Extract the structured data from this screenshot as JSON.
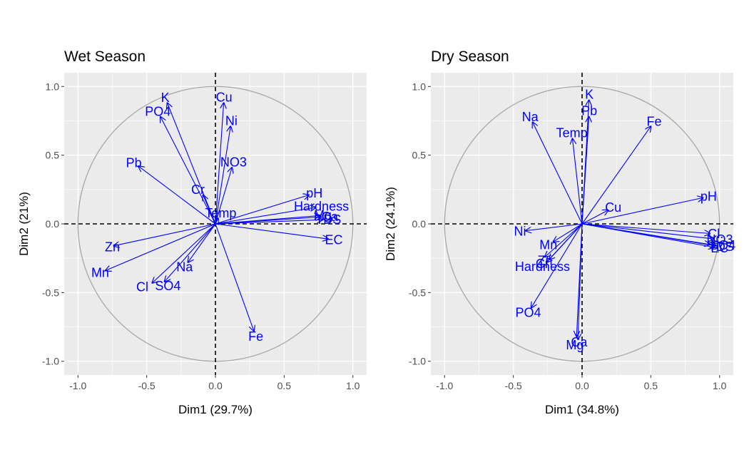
{
  "chart_data": [
    {
      "type": "scatter",
      "title": "Wet Season",
      "xlabel": "Dim1 (29.7%)",
      "ylabel": "Dim2 (21%)",
      "xlim": [
        -1.1,
        1.1
      ],
      "ylim": [
        -1.1,
        1.1
      ],
      "xticks": [
        "-1.0",
        "-0.5",
        "0.0",
        "0.5",
        "1.0"
      ],
      "yticks": [
        "-1.0",
        "-0.5",
        "0.0",
        "0.5",
        "1.0"
      ],
      "color": "#0000ff",
      "grid": true,
      "series": [
        {
          "name": "K",
          "x": -0.35,
          "y": 0.88
        },
        {
          "name": "PO4",
          "x": -0.4,
          "y": 0.78
        },
        {
          "name": "Cu",
          "x": 0.06,
          "y": 0.88
        },
        {
          "name": "Ni",
          "x": 0.11,
          "y": 0.71
        },
        {
          "name": "NO3",
          "x": 0.12,
          "y": 0.41
        },
        {
          "name": "Pb",
          "x": -0.56,
          "y": 0.42
        },
        {
          "name": "Cr",
          "x": -0.09,
          "y": 0.21
        },
        {
          "name": "Temp",
          "x": 0.02,
          "y": 0.04
        },
        {
          "name": "pH",
          "x": 0.68,
          "y": 0.21
        },
        {
          "name": "Hardness",
          "x": 0.73,
          "y": 0.12
        },
        {
          "name": "Mg",
          "x": 0.76,
          "y": 0.06
        },
        {
          "name": "Ca",
          "x": 0.77,
          "y": 0.05
        },
        {
          "name": "TDS",
          "x": 0.78,
          "y": 0.03
        },
        {
          "name": "EC",
          "x": 0.82,
          "y": -0.11
        },
        {
          "name": "Zn",
          "x": -0.74,
          "y": -0.16
        },
        {
          "name": "Mn",
          "x": -0.8,
          "y": -0.34
        },
        {
          "name": "Na",
          "x": -0.2,
          "y": -0.28
        },
        {
          "name": "Cl",
          "x": -0.46,
          "y": -0.43
        },
        {
          "name": "SO4",
          "x": -0.37,
          "y": -0.42
        },
        {
          "name": "Fe",
          "x": 0.28,
          "y": -0.78
        }
      ]
    },
    {
      "type": "scatter",
      "title": "Dry Season",
      "xlabel": "Dim1 (34.8%)",
      "ylabel": "Dim2 (24.1%)",
      "xlim": [
        -1.1,
        1.1
      ],
      "ylim": [
        -1.1,
        1.1
      ],
      "xticks": [
        "-1.0",
        "-0.5",
        "0.0",
        "0.5",
        "1.0"
      ],
      "yticks": [
        "-1.0",
        "-0.5",
        "0.0",
        "0.5",
        "1.0"
      ],
      "color": "#0000ff",
      "grid": true,
      "series": [
        {
          "name": "K",
          "x": 0.05,
          "y": 0.9
        },
        {
          "name": "Pb",
          "x": 0.05,
          "y": 0.78
        },
        {
          "name": "Na",
          "x": -0.36,
          "y": 0.74
        },
        {
          "name": "Temp",
          "x": -0.07,
          "y": 0.62
        },
        {
          "name": "Fe",
          "x": 0.5,
          "y": 0.71
        },
        {
          "name": "Cu",
          "x": 0.19,
          "y": 0.1
        },
        {
          "name": "pH",
          "x": 0.88,
          "y": 0.19
        },
        {
          "name": "Cl.",
          "x": 0.93,
          "y": -0.07
        },
        {
          "name": "NO3",
          "x": 0.96,
          "y": -0.11
        },
        {
          "name": "SO4",
          "x": 0.93,
          "y": -0.15
        },
        {
          "name": "EC",
          "x": 0.96,
          "y": -0.17
        },
        {
          "name": "TDS",
          "x": 0.97,
          "y": -0.16
        },
        {
          "name": "Ni",
          "x": -0.41,
          "y": -0.05
        },
        {
          "name": "Mn",
          "x": -0.21,
          "y": -0.13
        },
        {
          "name": "Zn",
          "x": -0.27,
          "y": -0.24
        },
        {
          "name": "Cr",
          "x": -0.24,
          "y": -0.26
        },
        {
          "name": "Hardness",
          "x": -0.26,
          "y": -0.28
        },
        {
          "name": "PO4",
          "x": -0.37,
          "y": -0.61
        },
        {
          "name": "Ca",
          "x": -0.04,
          "y": -0.82
        },
        {
          "name": "Mg",
          "x": -0.03,
          "y": -0.84
        }
      ]
    }
  ]
}
